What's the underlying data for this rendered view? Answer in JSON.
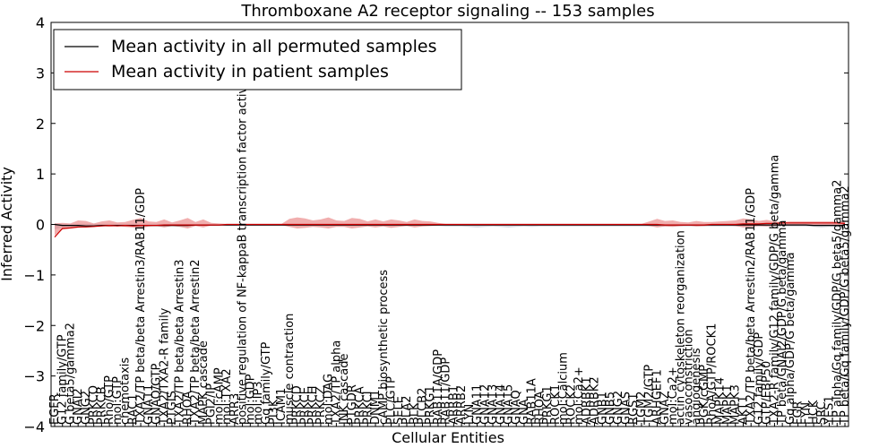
{
  "chart_data": {
    "type": "line",
    "title": "Thromboxane A2 receptor signaling -- 153 samples",
    "xlabel": "Cellular Entities",
    "ylabel": "Inferred Activity",
    "ylim": [
      -4,
      4
    ],
    "yticks": [
      "4",
      "3",
      "2",
      "1",
      "0",
      "−1",
      "−2",
      "−3",
      "−4"
    ],
    "ytick_values": [
      4,
      3,
      2,
      1,
      0,
      -1,
      -2,
      -3,
      -4
    ],
    "legend": {
      "position": "top-left",
      "entries": [
        {
          "label": "Mean activity in all permuted samples",
          "color": "#000000"
        },
        {
          "label": "Mean activity in patient samples",
          "color": "#cc0000"
        }
      ]
    },
    "categories": [
      "EGFR",
      "G12 family/GTP",
      "G beta5/gamma2",
      "GNAI2",
      "GNG2",
      "PRKCQ",
      "PRKCB",
      "Rho/GTP",
      "mol:GTP",
      "chemotaxis",
      "RAC1",
      "TXA2/TP beta/beta Arrestin3/RAB11/GDP",
      "GNA11",
      "GNAQ/GTP",
      "TXA2/TXA2-R family",
      "PTGIS",
      "TXA2/TP beta/beta Arrestin3",
      "RHOA",
      "TXA2/TP beta/beta Arrestin2",
      "MAPK cascade",
      "PGI2/IP",
      "mol:cAMP",
      "mol:TXA2",
      "ARR3",
      "positive regulation of NF-kappaB transcription factor activity",
      "mol:GDP",
      "mol:IP3",
      "Gq family/GTP",
      "PI3K",
      "ICAM1",
      "muscle contraction",
      "PRKCD",
      "PRKCE",
      "PRKCH",
      "PRKCZ",
      "mol:DAG",
      "TXA2/TP alpha",
      "JNK cascade",
      "PTGDR",
      "PRKCA",
      "PRKCI",
      "DNM1",
      "cAMP biosynthetic process",
      "PLC/GTP",
      "SELE",
      "PLA2",
      "BLK",
      "PLCB2",
      "PRKG1",
      "RAB11A/GDP",
      "RAB11/GDP",
      "ARRB1",
      "ARRB2",
      "LYN",
      "GNA11",
      "GNA12",
      "GNA13",
      "GNA14",
      "GNA15",
      "GNAQ",
      "GNA",
      "RAB11A",
      "RHOA",
      "PRKG1",
      "ROCK1",
      "mol:Calcium",
      "ROCK2",
      "mol:Ca2+",
      "ADRBK1",
      "ADRBK2",
      "GNB1",
      "GNB5",
      "GNG2",
      "GNAS",
      "RGS1",
      "TGM2",
      "TGM2/GTP",
      "ARHGEF1",
      "GNAZ",
      "mol:Ca2+",
      "actin cytoskeleton reorganization",
      "vasoconstriction",
      "angiogenesis",
      "PGK/cGMP",
      "RhoA/GTP/ROCK1",
      "MAPK14",
      "MAPK1",
      "MAPK3",
      "AKT1",
      "TXA2/TP beta/beta Arrestin2/RAB11/GDP",
      "G12 family/GDP",
      "GTP/EBP50",
      "TXA2-R family/G12 family/GDP/G beta/gamma",
      "TP beta/GNAI2/GDP/G beta/gamma",
      "Gq alpha/GDP/G beta/gamma",
      "FGR",
      "FYN",
      "HCK",
      "SRC",
      "YES1",
      "TP alpha/Gq family/GDP/G beta5/gamma2",
      "TP beta/Gq family/GDP/G beta5/gamma2"
    ],
    "series": [
      {
        "name": "Mean activity in all permuted samples",
        "color": "#000000",
        "values": [
          0,
          -0.02,
          -0.02,
          -0.02,
          -0.03,
          -0.03,
          -0.02,
          -0.02,
          -0.02,
          -0.02,
          -0.02,
          -0.02,
          -0.02,
          -0.02,
          -0.02,
          -0.02,
          -0.02,
          -0.02,
          -0.01,
          -0.01,
          -0.01,
          -0.01,
          -0.01,
          -0.01,
          -0.01,
          -0.01,
          -0.01,
          -0.01,
          -0.01,
          -0.01,
          -0.01,
          -0.01,
          -0.01,
          -0.01,
          -0.01,
          -0.01,
          -0.01,
          -0.01,
          -0.01,
          -0.01,
          -0.01,
          -0.01,
          -0.01,
          -0.01,
          -0.01,
          -0.01,
          -0.01,
          -0.01,
          -0.01,
          -0.01,
          -0.01,
          -0.01,
          -0.01,
          -0.01,
          -0.01,
          -0.01,
          -0.01,
          -0.01,
          -0.01,
          -0.01,
          -0.01,
          -0.01,
          -0.01,
          -0.01,
          -0.01,
          -0.01,
          -0.01,
          -0.01,
          -0.01,
          -0.01,
          -0.01,
          -0.01,
          -0.01,
          -0.01,
          -0.01,
          -0.01,
          -0.01,
          -0.01,
          -0.01,
          -0.01,
          -0.01,
          -0.01,
          -0.01,
          -0.01,
          -0.01,
          -0.01,
          -0.01,
          -0.01,
          -0.01,
          -0.01,
          -0.01,
          -0.01,
          -0.01,
          -0.01,
          -0.01,
          -0.01,
          -0.01,
          -0.02,
          -0.02,
          -0.02,
          -0.02,
          -0.02
        ]
      },
      {
        "name": "Mean activity in patient samples",
        "color": "#cc0000",
        "values": [
          -0.25,
          -0.08,
          -0.07,
          -0.05,
          -0.05,
          -0.04,
          -0.03,
          -0.02,
          -0.03,
          -0.02,
          -0.03,
          -0.02,
          -0.02,
          -0.02,
          -0.01,
          -0.01,
          -0.01,
          -0.01,
          -0.01,
          -0.01,
          -0.01,
          -0.01,
          0,
          0,
          0,
          0,
          0,
          0,
          0,
          0,
          0,
          0,
          0,
          0,
          0,
          0,
          0,
          0,
          0,
          0,
          0,
          0,
          0,
          0,
          0,
          0,
          0,
          0,
          0,
          0,
          0,
          0,
          0,
          0,
          0,
          0,
          0,
          0,
          0,
          0,
          0,
          0,
          0,
          0,
          0,
          0,
          0,
          0,
          0,
          0,
          0,
          0,
          0,
          0,
          0,
          0,
          0,
          0,
          -0.01,
          -0.01,
          -0.01,
          -0.01,
          -0.01,
          -0.01,
          0,
          0,
          0,
          0,
          0.01,
          0.01,
          0.01,
          0.02,
          0.02,
          0.03,
          0.03,
          0.03,
          0.03,
          0.03,
          0.03,
          0.03,
          0.03,
          0.02
        ]
      }
    ],
    "bands": [
      {
        "name": "permuted spread",
        "color": "#b8b8c8",
        "lower": [
          -0.1,
          -0.05,
          -0.04,
          -0.04,
          -0.05,
          -0.05,
          -0.04,
          -0.03,
          -0.03,
          -0.03,
          -0.03,
          -0.03,
          -0.03,
          -0.03,
          -0.03,
          -0.03,
          -0.03,
          -0.03,
          -0.03,
          -0.03,
          -0.03,
          -0.03,
          -0.03,
          -0.03,
          -0.03,
          -0.03,
          -0.03,
          -0.03,
          -0.03,
          -0.03,
          -0.03,
          -0.03,
          -0.03,
          -0.03,
          -0.03,
          -0.03,
          -0.03,
          -0.03,
          -0.03,
          -0.03,
          -0.03,
          -0.03,
          -0.03,
          -0.03,
          -0.03,
          -0.03,
          -0.03,
          -0.03,
          -0.03,
          -0.03,
          -0.04,
          -0.04,
          -0.04,
          -0.05,
          -0.06,
          -0.05,
          -0.04,
          -0.05,
          -0.06,
          -0.05,
          -0.04,
          -0.05,
          -0.04,
          -0.04,
          -0.04,
          -0.04,
          -0.04,
          -0.04,
          -0.04,
          -0.04,
          -0.04,
          -0.04,
          -0.04,
          -0.04,
          -0.04,
          -0.04,
          -0.04,
          -0.04,
          -0.04,
          -0.04,
          -0.04,
          -0.04,
          -0.04,
          -0.04,
          -0.04,
          -0.04,
          -0.04,
          -0.04,
          -0.04,
          -0.04,
          -0.04,
          -0.04,
          -0.04,
          -0.04,
          -0.04,
          -0.04,
          -0.04,
          -0.05,
          -0.06,
          -0.05,
          -0.06,
          -0.06
        ],
        "upper": [
          0.02,
          0.01,
          0.01,
          0.01,
          0.01,
          0.01,
          0.01,
          0.01,
          0.01,
          0.01,
          0.01,
          0.01,
          0.01,
          0.01,
          0.01,
          0.01,
          0.01,
          0.01,
          0.01,
          0.01,
          0.01,
          0.01,
          0.01,
          0.01,
          0.01,
          0.01,
          0.01,
          0.01,
          0.01,
          0.01,
          0.01,
          0.01,
          0.01,
          0.01,
          0.01,
          0.01,
          0.01,
          0.01,
          0.01,
          0.01,
          0.01,
          0.01,
          0.01,
          0.01,
          0.01,
          0.01,
          0.01,
          0.01,
          0.01,
          0.01,
          0.01,
          0.01,
          0.01,
          0.01,
          0.01,
          0.01,
          0.01,
          0.01,
          0.01,
          0.01,
          0.01,
          0.01,
          0.01,
          0.01,
          0.01,
          0.01,
          0.01,
          0.01,
          0.01,
          0.01,
          0.01,
          0.01,
          0.01,
          0.01,
          0.01,
          0.01,
          0.01,
          0.01,
          0.01,
          0.01,
          0.01,
          0.01,
          0.01,
          0.01,
          0.01,
          0.01,
          0.01,
          0.01,
          0.01,
          0.01,
          0.01,
          0.01,
          0.01,
          0.01,
          0.01,
          0.01,
          0.01,
          0.01,
          0.01,
          0.01,
          0.01,
          0.01
        ]
      },
      {
        "name": "patient spread",
        "color": "#e87878",
        "lower": [
          -0.22,
          -0.1,
          -0.08,
          -0.07,
          -0.04,
          -0.05,
          -0.03,
          -0.05,
          -0.03,
          -0.05,
          -0.06,
          -0.08,
          -0.04,
          -0.03,
          -0.06,
          -0.03,
          -0.05,
          -0.08,
          -0.03,
          -0.06,
          -0.02,
          -0.02,
          -0.01,
          -0.01,
          -0.01,
          -0.01,
          -0.01,
          -0.01,
          -0.01,
          -0.01,
          -0.05,
          -0.08,
          -0.07,
          -0.05,
          -0.06,
          -0.08,
          -0.05,
          -0.05,
          -0.08,
          -0.06,
          -0.04,
          -0.06,
          -0.04,
          -0.07,
          -0.05,
          -0.03,
          -0.06,
          -0.04,
          -0.03,
          -0.02,
          -0.01,
          -0.01,
          -0.01,
          -0.01,
          -0.01,
          -0.01,
          -0.01,
          -0.01,
          -0.01,
          -0.01,
          -0.01,
          -0.01,
          -0.01,
          -0.01,
          -0.01,
          -0.01,
          -0.01,
          -0.01,
          -0.01,
          -0.01,
          -0.01,
          -0.01,
          -0.01,
          -0.01,
          -0.01,
          -0.01,
          -0.03,
          -0.06,
          -0.04,
          -0.05,
          -0.03,
          -0.02,
          -0.04,
          -0.03,
          -0.02,
          -0.02,
          -0.02,
          -0.03,
          -0.06,
          -0.05,
          -0.03,
          -0.04,
          -0.03,
          -0.02,
          -0.02,
          -0.02,
          -0.02,
          -0.02,
          -0.02,
          -0.02,
          -0.02,
          -0.02
        ],
        "upper": [
          0.02,
          0.03,
          0.02,
          0.08,
          0.07,
          0.02,
          0.06,
          0.08,
          0.04,
          0.05,
          0.09,
          0.13,
          0.06,
          0.05,
          0.1,
          0.04,
          0.08,
          0.13,
          0.05,
          0.1,
          0.03,
          0.02,
          0.01,
          0.01,
          0.01,
          0.01,
          0.01,
          0.01,
          0.01,
          0.01,
          0.11,
          0.14,
          0.12,
          0.08,
          0.1,
          0.14,
          0.08,
          0.07,
          0.13,
          0.11,
          0.06,
          0.1,
          0.06,
          0.1,
          0.08,
          0.05,
          0.1,
          0.07,
          0.06,
          0.03,
          0.01,
          0.01,
          0.01,
          0.01,
          0.01,
          0.01,
          0.01,
          0.01,
          0.01,
          0.01,
          0.01,
          0.01,
          0.01,
          0.01,
          0.01,
          0.01,
          0.01,
          0.01,
          0.01,
          0.01,
          0.01,
          0.01,
          0.01,
          0.01,
          0.01,
          0.01,
          0.06,
          0.11,
          0.07,
          0.08,
          0.05,
          0.04,
          0.07,
          0.05,
          0.05,
          0.06,
          0.07,
          0.08,
          0.12,
          0.1,
          0.07,
          0.09,
          0.06,
          0.05,
          0.06,
          0.06,
          0.06,
          0.06,
          0.06,
          0.06,
          0.06,
          0.05
        ]
      }
    ]
  }
}
